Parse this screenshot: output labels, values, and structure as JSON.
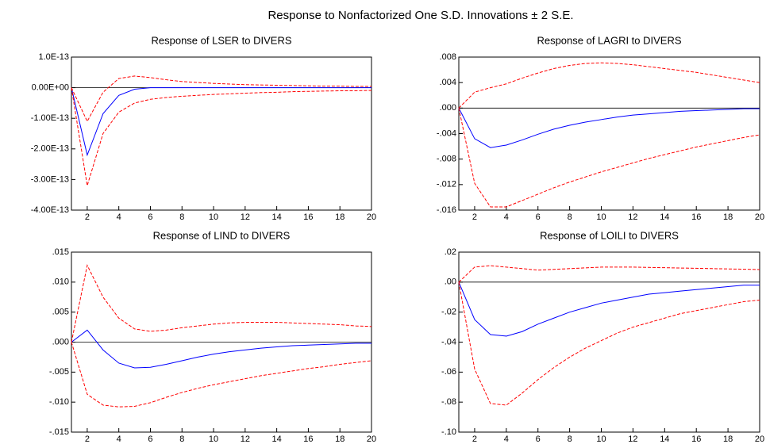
{
  "title": "Response to Nonfactorized One S.D. Innovations ± 2 S.E.",
  "chart_data": [
    {
      "type": "line",
      "title": "Response of LSER to DIVERS",
      "x": [
        1,
        2,
        3,
        4,
        5,
        6,
        7,
        8,
        9,
        10,
        11,
        12,
        13,
        14,
        15,
        16,
        17,
        18,
        19,
        20
      ],
      "xlim": [
        1,
        20
      ],
      "xticks": [
        2,
        4,
        6,
        8,
        10,
        12,
        14,
        16,
        18,
        20
      ],
      "ylim": [
        -4e-13,
        1e-13
      ],
      "yticks": [
        {
          "value": 1e-13,
          "label": "1.0E-13"
        },
        {
          "value": 0,
          "label": "0.00E+00"
        },
        {
          "value": -1e-13,
          "label": "-1.00E-13"
        },
        {
          "value": -2e-13,
          "label": "-2.00E-13"
        },
        {
          "value": -3e-13,
          "label": "-3.00E-13"
        },
        {
          "value": -4e-13,
          "label": "-4.00E-13"
        }
      ],
      "series": [
        {
          "color": "#0000ff",
          "dashed": false,
          "values": [
            0,
            -2.2e-13,
            -8.5e-14,
            -2.5e-14,
            -5e-15,
            0,
            0,
            0,
            0,
            0,
            0,
            0,
            0,
            0,
            0,
            0,
            0,
            0,
            0,
            0
          ]
        },
        {
          "color": "#ff0000",
          "dashed": true,
          "values": [
            0,
            -1.1e-13,
            -1.5e-14,
            3e-14,
            3.8e-14,
            3.3e-14,
            2.6e-14,
            2e-14,
            1.7e-14,
            1.4e-14,
            1.2e-14,
            1e-14,
            9e-15,
            8e-15,
            7e-15,
            6e-15,
            5e-15,
            5e-15,
            4e-15,
            4e-15
          ]
        },
        {
          "color": "#ff0000",
          "dashed": true,
          "values": [
            0,
            -3.2e-13,
            -1.5e-13,
            -8e-14,
            -5e-14,
            -3.8e-14,
            -3.2e-14,
            -2.8e-14,
            -2.5e-14,
            -2.2e-14,
            -2e-14,
            -1.8e-14,
            -1.6e-14,
            -1.5e-14,
            -1.3e-14,
            -1.2e-14,
            -1.1e-14,
            -1e-14,
            -1e-14,
            -9e-15
          ]
        }
      ]
    },
    {
      "type": "line",
      "title": "Response of LAGRI to DIVERS",
      "x": [
        1,
        2,
        3,
        4,
        5,
        6,
        7,
        8,
        9,
        10,
        11,
        12,
        13,
        14,
        15,
        16,
        17,
        18,
        19,
        20
      ],
      "xlim": [
        1,
        20
      ],
      "xticks": [
        2,
        4,
        6,
        8,
        10,
        12,
        14,
        16,
        18,
        20
      ],
      "ylim": [
        -0.016,
        0.008
      ],
      "yticks": [
        {
          "value": 0.008,
          "label": ".008"
        },
        {
          "value": 0.004,
          "label": ".004"
        },
        {
          "value": 0,
          "label": ".000"
        },
        {
          "value": -0.004,
          "label": "-.004"
        },
        {
          "value": -0.008,
          "label": "-.008"
        },
        {
          "value": -0.012,
          "label": "-.012"
        },
        {
          "value": -0.016,
          "label": "-.016"
        }
      ],
      "series": [
        {
          "color": "#0000ff",
          "dashed": false,
          "values": [
            0,
            -0.0048,
            -0.0062,
            -0.0058,
            -0.005,
            -0.0041,
            -0.0033,
            -0.0027,
            -0.0022,
            -0.0018,
            -0.0014,
            -0.0011,
            -0.0009,
            -0.0007,
            -0.0005,
            -0.0004,
            -0.0003,
            -0.0002,
            -0.0001,
            -0.0001
          ]
        },
        {
          "color": "#ff0000",
          "dashed": true,
          "values": [
            0,
            0.0025,
            0.0032,
            0.0038,
            0.0047,
            0.0055,
            0.0062,
            0.0067,
            0.007,
            0.0071,
            0.007,
            0.0068,
            0.0065,
            0.0062,
            0.0059,
            0.0056,
            0.0052,
            0.0048,
            0.0044,
            0.004
          ]
        },
        {
          "color": "#ff0000",
          "dashed": true,
          "values": [
            0,
            -0.0118,
            -0.0155,
            -0.0155,
            -0.0145,
            -0.0135,
            -0.0125,
            -0.0116,
            -0.0108,
            -0.01,
            -0.0093,
            -0.0086,
            -0.0079,
            -0.0073,
            -0.0067,
            -0.0061,
            -0.0056,
            -0.0051,
            -0.0046,
            -0.0042
          ]
        }
      ]
    },
    {
      "type": "line",
      "title": "Response of LIND to DIVERS",
      "x": [
        1,
        2,
        3,
        4,
        5,
        6,
        7,
        8,
        9,
        10,
        11,
        12,
        13,
        14,
        15,
        16,
        17,
        18,
        19,
        20
      ],
      "xlim": [
        1,
        20
      ],
      "xticks": [
        2,
        4,
        6,
        8,
        10,
        12,
        14,
        16,
        18,
        20
      ],
      "ylim": [
        -0.015,
        0.015
      ],
      "yticks": [
        {
          "value": 0.015,
          "label": ".015"
        },
        {
          "value": 0.01,
          "label": ".010"
        },
        {
          "value": 0.005,
          "label": ".005"
        },
        {
          "value": 0,
          "label": ".000"
        },
        {
          "value": -0.005,
          "label": "-.005"
        },
        {
          "value": -0.01,
          "label": "-.010"
        },
        {
          "value": -0.015,
          "label": "-.015"
        }
      ],
      "series": [
        {
          "color": "#0000ff",
          "dashed": false,
          "values": [
            0,
            0.002,
            -0.0013,
            -0.0035,
            -0.0043,
            -0.0042,
            -0.0037,
            -0.0031,
            -0.0025,
            -0.002,
            -0.0016,
            -0.0013,
            -0.001,
            -0.0008,
            -0.0006,
            -0.0005,
            -0.0004,
            -0.0003,
            -0.0002,
            -0.0002
          ]
        },
        {
          "color": "#ff0000",
          "dashed": true,
          "values": [
            0,
            0.0128,
            0.0075,
            0.004,
            0.0022,
            0.0018,
            0.002,
            0.0024,
            0.0027,
            0.003,
            0.0032,
            0.0033,
            0.0033,
            0.0033,
            0.0032,
            0.0031,
            0.003,
            0.0029,
            0.0027,
            0.0026
          ]
        },
        {
          "color": "#ff0000",
          "dashed": true,
          "values": [
            0,
            -0.0087,
            -0.0105,
            -0.0108,
            -0.0107,
            -0.0101,
            -0.0092,
            -0.0084,
            -0.0077,
            -0.0071,
            -0.0066,
            -0.0061,
            -0.0056,
            -0.0052,
            -0.0048,
            -0.0044,
            -0.0041,
            -0.0037,
            -0.0034,
            -0.0031
          ]
        }
      ]
    },
    {
      "type": "line",
      "title": "Response of LOILI to DIVERS",
      "x": [
        1,
        2,
        3,
        4,
        5,
        6,
        7,
        8,
        9,
        10,
        11,
        12,
        13,
        14,
        15,
        16,
        17,
        18,
        19,
        20
      ],
      "xlim": [
        1,
        20
      ],
      "xticks": [
        2,
        4,
        6,
        8,
        10,
        12,
        14,
        16,
        18,
        20
      ],
      "ylim": [
        -0.1,
        0.02
      ],
      "yticks": [
        {
          "value": 0.02,
          "label": ".02"
        },
        {
          "value": 0,
          "label": ".00"
        },
        {
          "value": -0.02,
          "label": "-.02"
        },
        {
          "value": -0.04,
          "label": "-.04"
        },
        {
          "value": -0.06,
          "label": "-.06"
        },
        {
          "value": -0.08,
          "label": "-.08"
        },
        {
          "value": -0.1,
          "label": "-.10"
        }
      ],
      "series": [
        {
          "color": "#0000ff",
          "dashed": false,
          "values": [
            0,
            -0.025,
            -0.035,
            -0.036,
            -0.033,
            -0.028,
            -0.024,
            -0.02,
            -0.017,
            -0.014,
            -0.012,
            -0.01,
            -0.008,
            -0.007,
            -0.006,
            -0.005,
            -0.004,
            -0.003,
            -0.002,
            -0.002
          ]
        },
        {
          "color": "#ff0000",
          "dashed": true,
          "values": [
            0,
            0.01,
            0.011,
            0.01,
            0.009,
            0.008,
            0.0085,
            0.009,
            0.0095,
            0.01,
            0.01,
            0.01,
            0.0098,
            0.0096,
            0.0094,
            0.0092,
            0.009,
            0.0088,
            0.0086,
            0.0084
          ]
        },
        {
          "color": "#ff0000",
          "dashed": true,
          "values": [
            0,
            -0.058,
            -0.081,
            -0.082,
            -0.074,
            -0.065,
            -0.057,
            -0.05,
            -0.044,
            -0.039,
            -0.034,
            -0.03,
            -0.027,
            -0.024,
            -0.021,
            -0.019,
            -0.017,
            -0.015,
            -0.013,
            -0.012
          ]
        }
      ]
    }
  ]
}
